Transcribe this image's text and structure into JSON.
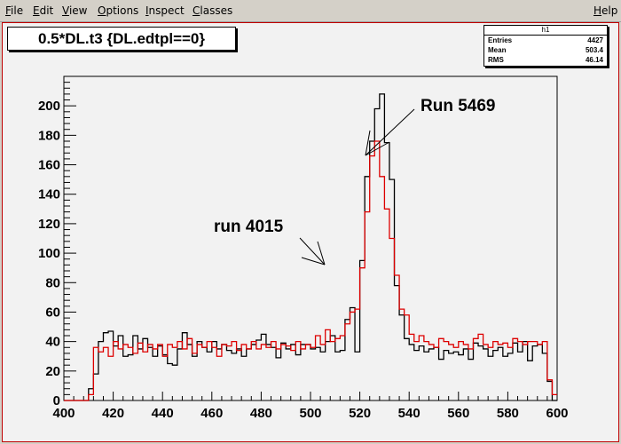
{
  "menu": {
    "file": {
      "u": "F",
      "rest": "ile"
    },
    "edit": {
      "u": "E",
      "rest": "dit"
    },
    "view": {
      "u": "V",
      "rest": "iew"
    },
    "options": {
      "u": "O",
      "rest": "ptions"
    },
    "inspect": {
      "u": "I",
      "rest": "nspect"
    },
    "classes": {
      "u": "C",
      "rest": "lasses"
    },
    "help": {
      "u": "H",
      "rest": "elp"
    }
  },
  "histogram_title": "0.5*DL.t3 {DL.edtpl==0}",
  "stats": {
    "name": "h1",
    "entries_label": "Entries",
    "entries_value": "4427",
    "mean_label": "Mean",
    "mean_value": "503.4",
    "rms_label": "RMS",
    "rms_value": "46.14"
  },
  "chart_data": {
    "type": "histogram",
    "xlim": [
      400,
      600
    ],
    "ylim": [
      0,
      220
    ],
    "x_ticks": [
      "400",
      "420",
      "440",
      "460",
      "480",
      "500",
      "520",
      "540",
      "560",
      "580",
      "600"
    ],
    "y_ticks": [
      "0",
      "20",
      "40",
      "60",
      "80",
      "100",
      "120",
      "140",
      "160",
      "180",
      "200"
    ],
    "bin_start": 400,
    "bin_width": 2,
    "series": [
      {
        "name": "Run 5469",
        "color": "#000000",
        "values": [
          0,
          0,
          0,
          0,
          0,
          8,
          18,
          40,
          46,
          47,
          37,
          44,
          30,
          31,
          44,
          35,
          42,
          36,
          30,
          37,
          31,
          25,
          24,
          35,
          46,
          38,
          30,
          40,
          36,
          33,
          40,
          35,
          38,
          34,
          32,
          35,
          30,
          35,
          38,
          41,
          45,
          38,
          36,
          29,
          39,
          35,
          38,
          31,
          38,
          38,
          35,
          36,
          33,
          40,
          44,
          33,
          34,
          55,
          63,
          33,
          95,
          152,
          176,
          198,
          208,
          175,
          150,
          78,
          58,
          42,
          38,
          34,
          37,
          33,
          35,
          36,
          28,
          34,
          32,
          33,
          31,
          35,
          28,
          39,
          37,
          35,
          30,
          34,
          36,
          30,
          32,
          39,
          33,
          40,
          27,
          37,
          38,
          32,
          13,
          0
        ]
      },
      {
        "name": "run 4015",
        "color": "#dd0000",
        "values": [
          0,
          0,
          0,
          0,
          0,
          4,
          36,
          33,
          36,
          30,
          40,
          35,
          38,
          36,
          32,
          39,
          33,
          38,
          35,
          38,
          30,
          38,
          36,
          40,
          35,
          42,
          32,
          38,
          36,
          40,
          36,
          30,
          38,
          37,
          40,
          34,
          38,
          35,
          40,
          35,
          38,
          36,
          40,
          35,
          38,
          37,
          34,
          40,
          35,
          38,
          36,
          44,
          38,
          48,
          40,
          42,
          44,
          52,
          60,
          62,
          90,
          128,
          166,
          176,
          152,
          130,
          110,
          85,
          62,
          58,
          45,
          40,
          44,
          40,
          38,
          36,
          42,
          40,
          38,
          36,
          40,
          38,
          35,
          42,
          45,
          38,
          36,
          40,
          38,
          39,
          36,
          42,
          40,
          38,
          40,
          40,
          38,
          40,
          14,
          4
        ]
      }
    ],
    "annotations": [
      {
        "text": "Run 5469"
      },
      {
        "text": "run 4015"
      }
    ]
  }
}
